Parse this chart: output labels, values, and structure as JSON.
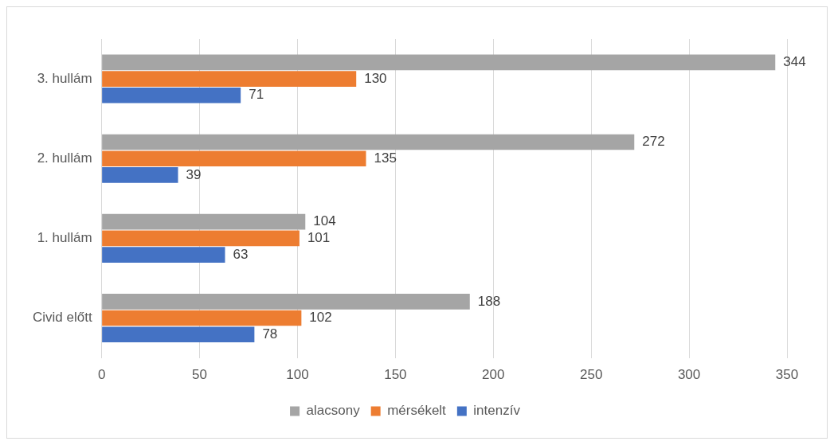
{
  "chart_data": {
    "type": "bar",
    "orientation": "horizontal",
    "categories": [
      "3. hullám",
      "2. hullám",
      "1. hullám",
      "Civid előtt"
    ],
    "series": [
      {
        "name": "alacsony",
        "color": "#a5a5a5",
        "values": [
          344,
          272,
          104,
          188
        ]
      },
      {
        "name": "mérsékelt",
        "color": "#ed7d31",
        "values": [
          130,
          135,
          101,
          102
        ]
      },
      {
        "name": "intenzív",
        "color": "#4472c4",
        "values": [
          71,
          39,
          63,
          78
        ]
      }
    ],
    "xlim": [
      0,
      350
    ],
    "xticks": [
      0,
      50,
      100,
      150,
      200,
      250,
      300,
      350
    ],
    "grid": "x",
    "legend": "bottom",
    "data_labels": true
  }
}
